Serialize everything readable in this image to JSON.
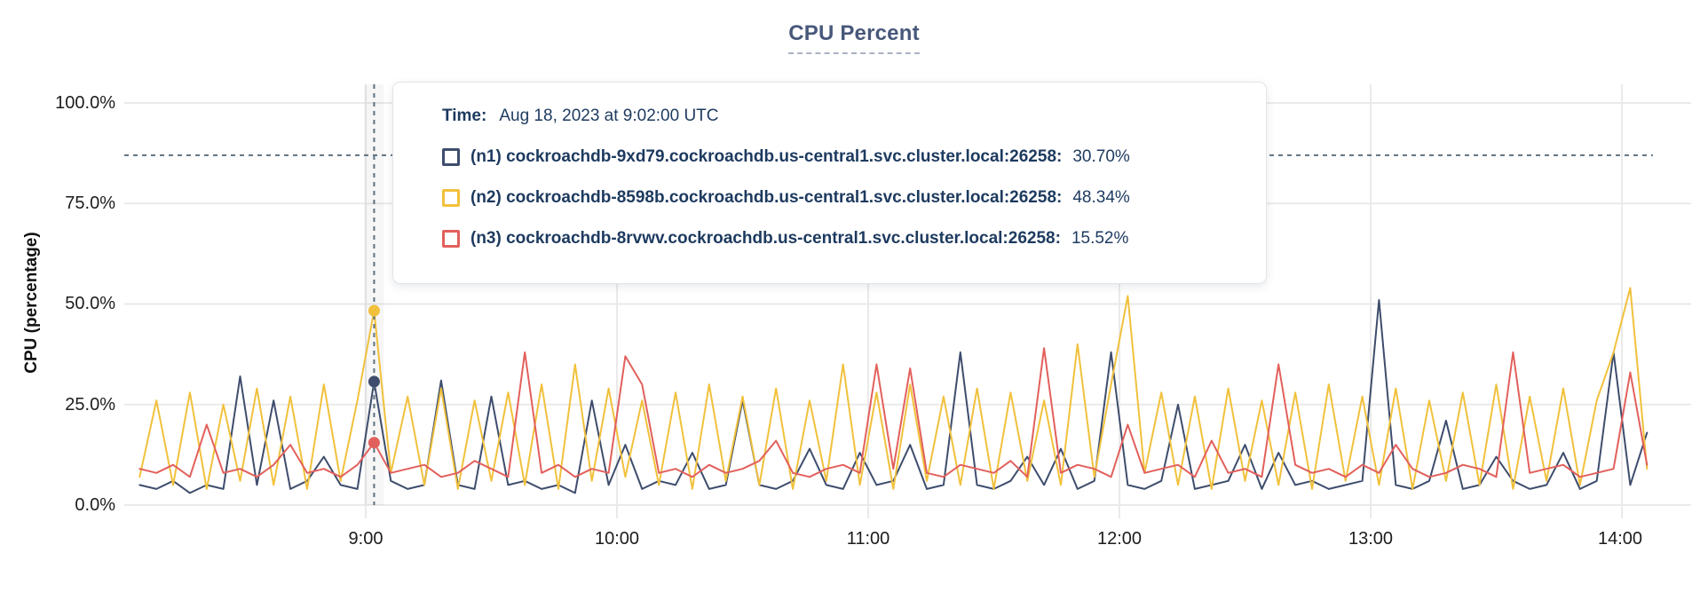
{
  "title": "CPU Percent",
  "colors": {
    "n1": "#3e4d6d",
    "n2": "#f1c13c",
    "n3": "#e2605c",
    "grid": "#eaeaea",
    "crosshair": "#5d7181",
    "axis_text": "#1c1c1c",
    "tooltip_text": "#1d3a5f",
    "title_text": "#47587a"
  },
  "y_axis": {
    "title": "CPU (percentage)",
    "ticks": [
      "100.0%",
      "75.0%",
      "50.0%",
      "25.0%",
      "0.0%"
    ]
  },
  "x_axis": {
    "ticks": [
      "9:00",
      "10:00",
      "11:00",
      "12:00",
      "13:00",
      "14:00"
    ]
  },
  "tooltip": {
    "time_label": "Time:",
    "time_value": "Aug 18, 2023 at 9:02:00 UTC",
    "rows": [
      {
        "series": "n1",
        "label": "(n1) cockroachdb-9xd79.cockroachdb.us-central1.svc.cluster.local:26258:",
        "value": "30.70%",
        "color": "#3e4d6d"
      },
      {
        "series": "n2",
        "label": "(n2) cockroachdb-8598b.cockroachdb.us-central1.svc.cluster.local:26258:",
        "value": "48.34%",
        "color": "#f1c13c"
      },
      {
        "series": "n3",
        "label": "(n3) cockroachdb-8rvwv.cockroachdb.us-central1.svc.cluster.local:26258:",
        "value": "15.52%",
        "color": "#e2605c"
      }
    ]
  },
  "chart_data": {
    "type": "line",
    "title": "CPU Percent",
    "xlabel": "",
    "ylabel": "CPU (percentage)",
    "ylim": [
      0,
      100
    ],
    "grid": true,
    "y_ticks_percent": [
      0,
      25,
      50,
      75,
      100
    ],
    "x_tick_hours": [
      9,
      10,
      11,
      12,
      13,
      14
    ],
    "x_range_hours": {
      "start": 8.1,
      "end": 14.1,
      "step_minutes": 4
    },
    "hover": {
      "time": "Aug 18, 2023 at 9:02:00 UTC",
      "x_hour": 9.0333,
      "crosshair_y_percent": 87,
      "values": {
        "n1": 30.7,
        "n2": 48.34,
        "n3": 15.52
      }
    },
    "series": [
      {
        "name": "(n1) cockroachdb-9xd79.cockroachdb.us-central1.svc.cluster.local:26258",
        "color": "#3e4d6d",
        "values": [
          5,
          4,
          6,
          3,
          5,
          4,
          32,
          5,
          26,
          4,
          6,
          12,
          5,
          4,
          30.7,
          6,
          4,
          5,
          31,
          5,
          4,
          27,
          5,
          6,
          4,
          5,
          3,
          26,
          5,
          15,
          4,
          6,
          5,
          13,
          4,
          5,
          26,
          5,
          4,
          6,
          14,
          5,
          4,
          13,
          5,
          6,
          15,
          4,
          5,
          38,
          5,
          4,
          6,
          12,
          5,
          14,
          4,
          6,
          38,
          5,
          4,
          6,
          25,
          4,
          5,
          6,
          15,
          4,
          13,
          5,
          6,
          4,
          5,
          6,
          51,
          5,
          4,
          6,
          21,
          4,
          5,
          12,
          6,
          4,
          5,
          13,
          4,
          6,
          38,
          5,
          18
        ]
      },
      {
        "name": "(n2) cockroachdb-8598b.cockroachdb.us-central1.svc.cluster.local:26258",
        "color": "#f1c13c",
        "values": [
          7,
          26,
          5,
          28,
          4,
          25,
          6,
          29,
          5,
          27,
          4,
          30,
          6,
          26,
          48.34,
          8,
          27,
          5,
          29,
          4,
          26,
          6,
          28,
          5,
          30,
          4,
          35,
          6,
          29,
          7,
          26,
          5,
          28,
          4,
          30,
          6,
          27,
          5,
          29,
          4,
          26,
          6,
          35,
          5,
          28,
          4,
          30,
          6,
          27,
          5,
          29,
          4,
          28,
          6,
          26,
          5,
          40,
          7,
          30,
          52,
          8,
          28,
          5,
          27,
          4,
          29,
          6,
          26,
          5,
          28,
          4,
          30,
          6,
          27,
          5,
          29,
          4,
          26,
          6,
          28,
          5,
          30,
          4,
          27,
          6,
          29,
          5,
          26,
          38,
          54,
          9
        ]
      },
      {
        "name": "(n3) cockroachdb-8rvwv.cockroachdb.us-central1.svc.cluster.local:26258",
        "color": "#e2605c",
        "values": [
          9,
          8,
          10,
          7,
          20,
          8,
          9,
          7,
          10,
          15,
          8,
          9,
          7,
          10,
          15.52,
          8,
          9,
          10,
          7,
          8,
          11,
          9,
          7,
          38,
          8,
          10,
          7,
          9,
          8,
          37,
          30,
          8,
          9,
          7,
          10,
          8,
          9,
          11,
          16,
          8,
          7,
          9,
          10,
          8,
          35,
          9,
          34,
          8,
          7,
          10,
          9,
          8,
          11,
          7,
          39,
          8,
          10,
          9,
          7,
          20,
          8,
          9,
          10,
          7,
          16,
          8,
          9,
          7,
          35,
          10,
          8,
          9,
          7,
          10,
          8,
          15,
          9,
          7,
          8,
          10,
          9,
          7,
          38,
          8,
          9,
          10,
          7,
          8,
          9,
          33,
          10
        ]
      }
    ]
  }
}
